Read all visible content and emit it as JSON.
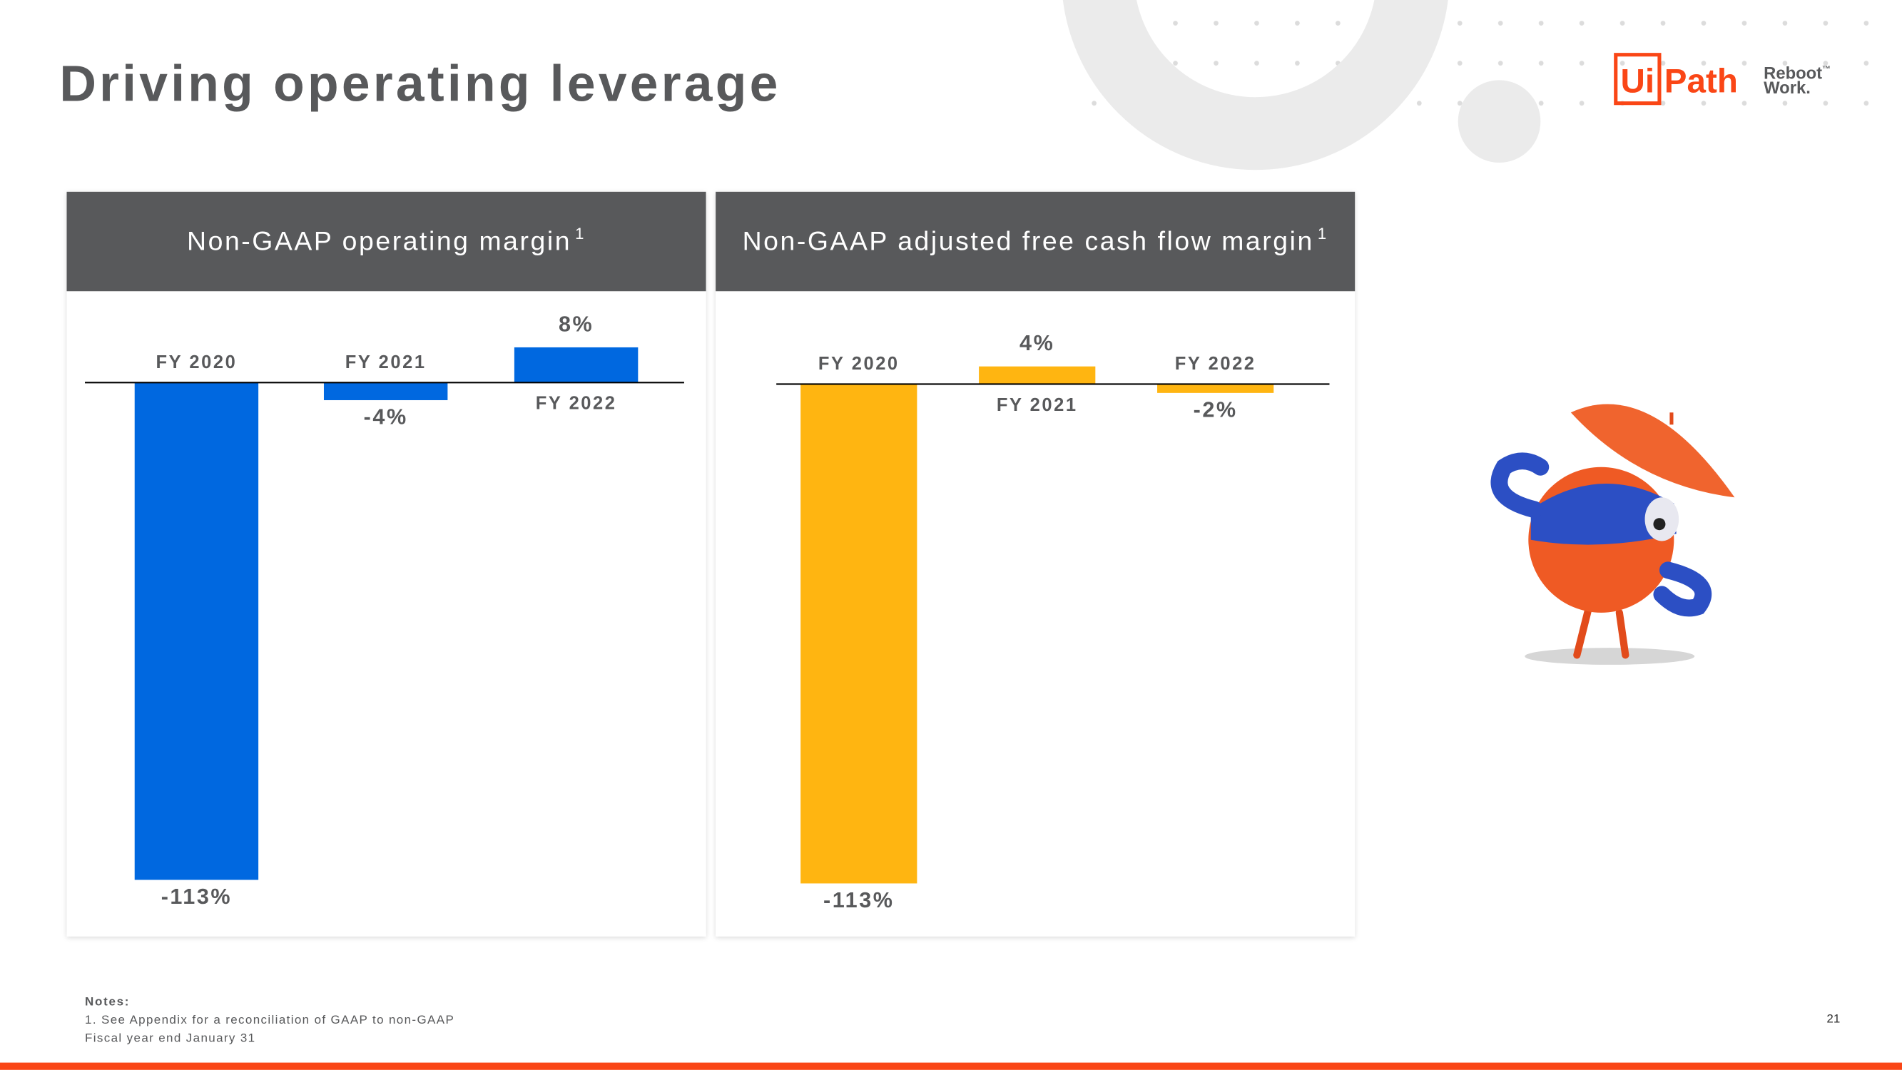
{
  "title": "Driving operating leverage",
  "logo": {
    "mark": "Ui",
    "name": "Path",
    "tagline_1": "Reboot",
    "trademark": "™",
    "tagline_2": "Work."
  },
  "chart_data": [
    {
      "type": "bar",
      "title": "Non-GAAP operating margin",
      "title_note": "1",
      "categories": [
        "FY 2020",
        "FY 2021",
        "FY 2022"
      ],
      "values": [
        -113,
        -4,
        8
      ],
      "value_labels": [
        "-113%",
        "-4%",
        "8%"
      ],
      "color": "#0068e0",
      "ylim": [
        -122,
        18
      ]
    },
    {
      "type": "bar",
      "title": "Non-GAAP adjusted free cash flow margin",
      "title_note": "1",
      "categories": [
        "FY 2020",
        "FY 2021",
        "FY 2022"
      ],
      "values": [
        -113,
        4,
        -2
      ],
      "value_labels": [
        "-113%",
        "4%",
        "-2%"
      ],
      "color": "#ffb511",
      "ylim": [
        -125,
        18
      ]
    }
  ],
  "notes": {
    "heading": "Notes:",
    "lines": [
      "1. See Appendix for a reconciliation of GAAP to non-GAAP",
      "Fiscal year end January 31"
    ]
  },
  "page_number": "21"
}
